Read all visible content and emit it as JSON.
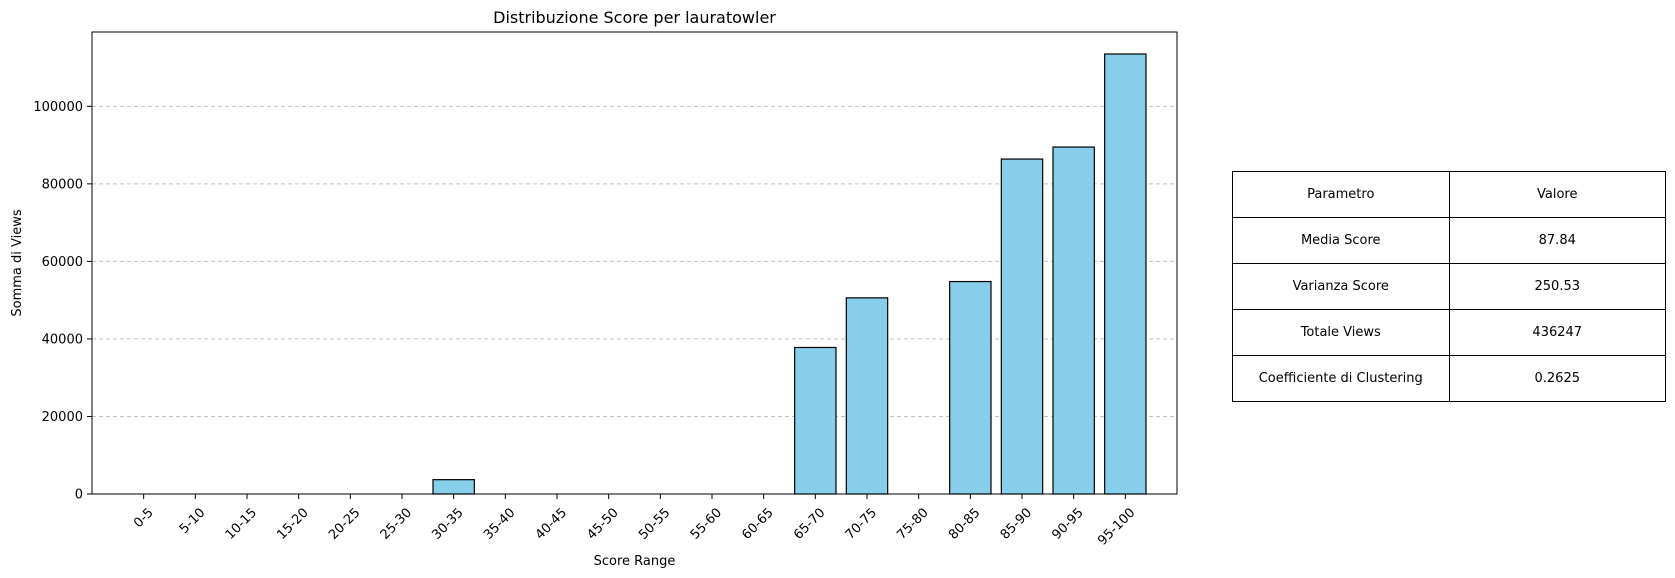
{
  "chart_data": {
    "type": "bar",
    "title": "Distribuzione Score per lauratowler",
    "xlabel": "Score Range",
    "ylabel": "Somma di Views",
    "categories": [
      "0-5",
      "5-10",
      "10-15",
      "15-20",
      "20-25",
      "25-30",
      "30-35",
      "35-40",
      "40-45",
      "45-50",
      "50-55",
      "55-60",
      "60-65",
      "65-70",
      "70-75",
      "75-80",
      "80-85",
      "85-90",
      "90-95",
      "95-100"
    ],
    "values": [
      0,
      0,
      0,
      0,
      0,
      0,
      3700,
      0,
      0,
      0,
      0,
      0,
      0,
      37800,
      50600,
      0,
      54800,
      86400,
      89500,
      113500
    ],
    "yticks": [
      0,
      20000,
      40000,
      60000,
      80000,
      100000
    ],
    "ylim": [
      0,
      119175
    ],
    "grid": "y-dashed",
    "bar_color": "#87CEEB",
    "edge_color": "#000000",
    "grid_color": "#c0c0c0"
  },
  "table": {
    "header": [
      "Parametro",
      "Valore"
    ],
    "rows": [
      [
        "Media Score",
        "87.84"
      ],
      [
        "Varianza Score",
        "250.53"
      ],
      [
        "Totale Views",
        "436247"
      ],
      [
        "Coefficiente di Clustering",
        "0.2625"
      ]
    ]
  }
}
